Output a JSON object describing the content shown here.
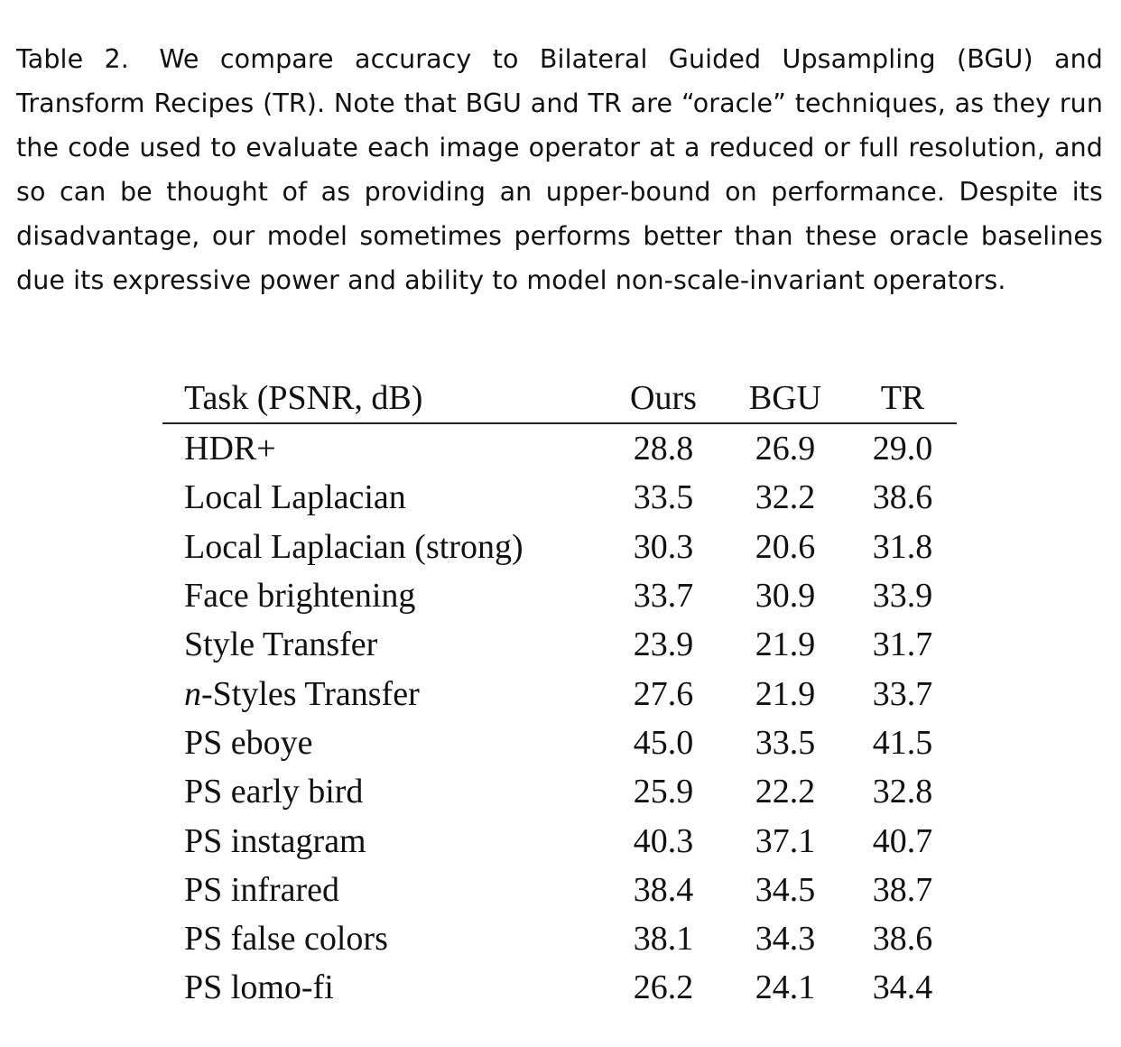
{
  "caption": {
    "label": "Table 2.",
    "text": "We compare accuracy to Bilateral Guided Upsampling (BGU) and Transform Recipes (TR). Note that BGU and TR are “oracle” techniques, as they run the code used to evaluate each image operator at a reduced or full resolution, and so can be thought of as providing an upper-bound on performance. Despite its disadvantage, our model sometimes performs better than these oracle baselines due its expressive power and ability to model non-scale-invariant operators."
  },
  "table": {
    "headers": [
      "Task (PSNR, dB)",
      "Ours",
      "BGU",
      "TR"
    ],
    "rows": [
      {
        "task_italic": "",
        "task": "HDR+",
        "ours": "28.8",
        "bgu": "26.9",
        "tr": "29.0"
      },
      {
        "task_italic": "",
        "task": "Local Laplacian",
        "ours": "33.5",
        "bgu": "32.2",
        "tr": "38.6"
      },
      {
        "task_italic": "",
        "task": "Local Laplacian (strong)",
        "ours": "30.3",
        "bgu": "20.6",
        "tr": "31.8"
      },
      {
        "task_italic": "",
        "task": "Face brightening",
        "ours": "33.7",
        "bgu": "30.9",
        "tr": "33.9"
      },
      {
        "task_italic": "",
        "task": "Style Transfer",
        "ours": "23.9",
        "bgu": "21.9",
        "tr": "31.7"
      },
      {
        "task_italic": "n",
        "task": "-Styles Transfer",
        "ours": "27.6",
        "bgu": "21.9",
        "tr": "33.7"
      },
      {
        "task_italic": "",
        "task": "PS eboye",
        "ours": "45.0",
        "bgu": "33.5",
        "tr": "41.5"
      },
      {
        "task_italic": "",
        "task": "PS early bird",
        "ours": "25.9",
        "bgu": "22.2",
        "tr": "32.8"
      },
      {
        "task_italic": "",
        "task": "PS instagram",
        "ours": "40.3",
        "bgu": "37.1",
        "tr": "40.7"
      },
      {
        "task_italic": "",
        "task": "PS infrared",
        "ours": "38.4",
        "bgu": "34.5",
        "tr": "38.7"
      },
      {
        "task_italic": "",
        "task": "PS false colors",
        "ours": "38.1",
        "bgu": "34.3",
        "tr": "38.6"
      },
      {
        "task_italic": "",
        "task": "PS lomo-fi",
        "ours": "26.2",
        "bgu": "24.1",
        "tr": "34.4"
      }
    ]
  }
}
